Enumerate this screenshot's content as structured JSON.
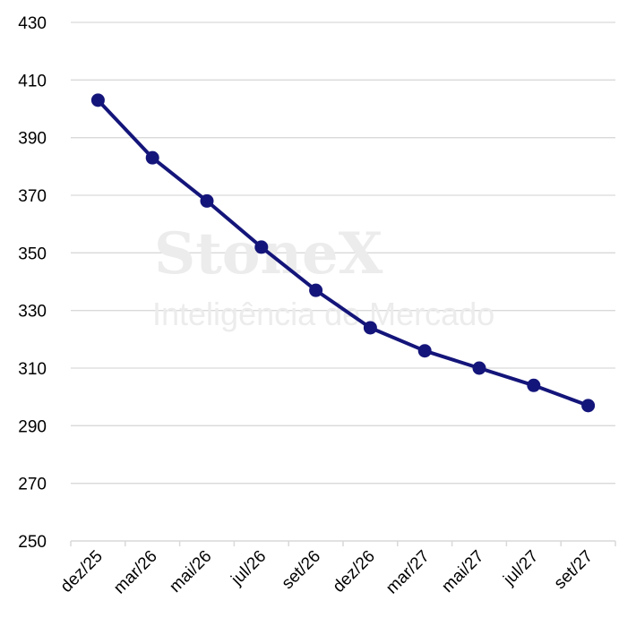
{
  "watermark": {
    "brand": "StoneX",
    "subtitle": "Inteligência de Mercado"
  },
  "chart_data": {
    "type": "line",
    "title": "",
    "xlabel": "",
    "ylabel": "",
    "categories": [
      "dez/25",
      "mar/26",
      "mai/26",
      "jul/26",
      "set/26",
      "dez/26",
      "mar/27",
      "mai/27",
      "jul/27",
      "set/27"
    ],
    "series": [
      {
        "values": [
          403,
          383,
          368,
          352,
          337,
          324,
          316,
          310,
          304,
          297
        ]
      }
    ],
    "ylim": [
      250,
      430
    ],
    "yticks": [
      250,
      270,
      290,
      310,
      330,
      350,
      370,
      390,
      410,
      430
    ],
    "grid": true,
    "legend": "none",
    "line_color": "#14157a",
    "grid_color": "#d9d9d9"
  }
}
